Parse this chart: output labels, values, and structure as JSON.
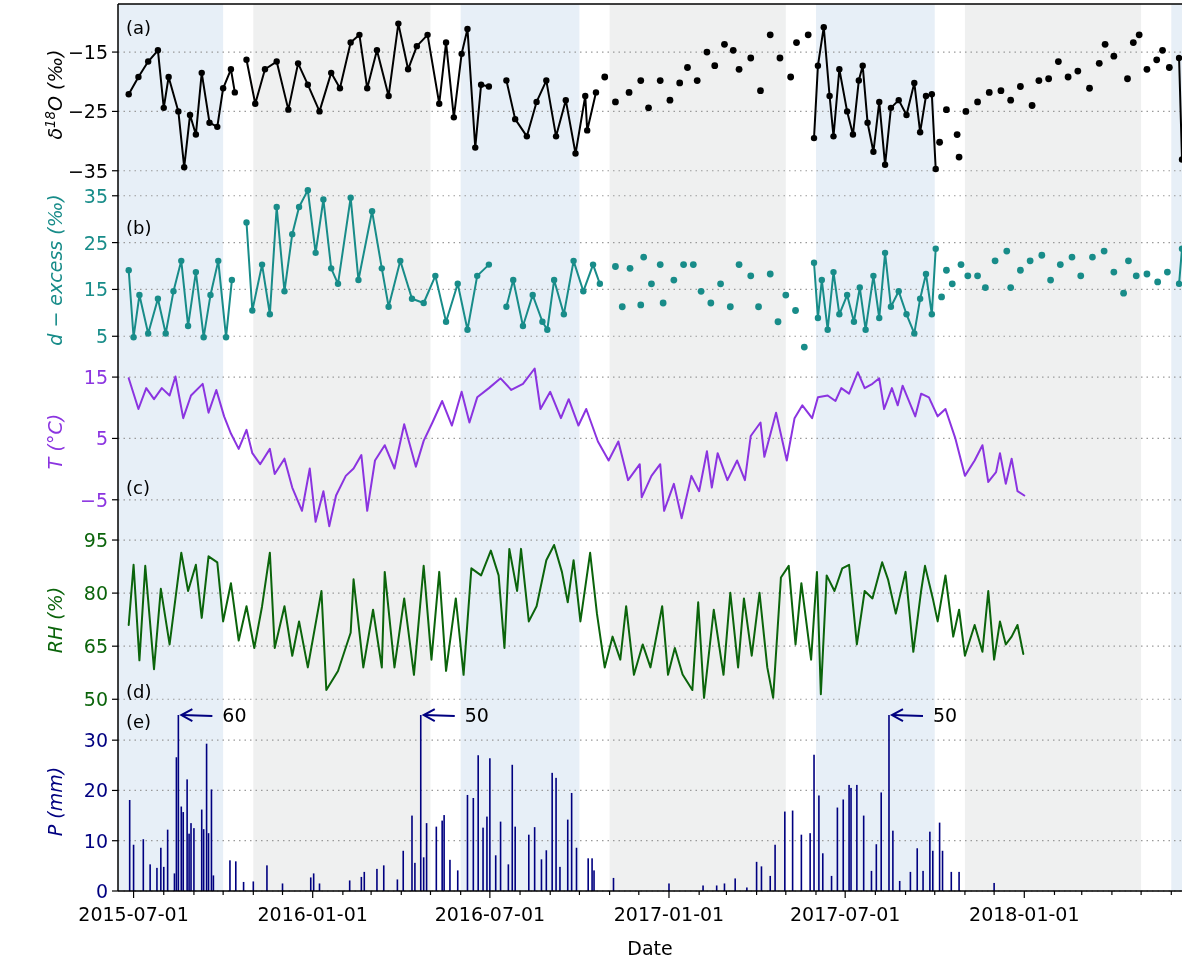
{
  "chart_data": [
    {
      "type": "line",
      "ylabel": "δ$^{18}$O (‰)",
      "xlim": [
        "2015-06-15",
        "2018-06-12"
      ],
      "ylim": [
        -37.4,
        -6.9
      ],
      "yticks": [
        -15,
        -25,
        -35
      ],
      "grid": "y",
      "tick_labels": "y",
      "annotations": [
        "(a)"
      ],
      "bands": [
        {
          "axis": "x",
          "from": "2015-06-15",
          "to": "2015-10-01",
          "color": "#e7eff7"
        },
        {
          "axis": "x",
          "from": "2015-11-01",
          "to": "2016-05-01",
          "color": "#eff0f0"
        },
        {
          "axis": "x",
          "from": "2016-06-01",
          "to": "2016-10-01",
          "color": "#e7eff7"
        },
        {
          "axis": "x",
          "from": "2016-11-01",
          "to": "2017-05-01",
          "color": "#eff0f0"
        },
        {
          "axis": "x",
          "from": "2017-06-01",
          "to": "2017-10-01",
          "color": "#e7eff7"
        },
        {
          "axis": "x",
          "from": "2017-11-01",
          "to": "2018-05-01",
          "color": "#eff0f0"
        },
        {
          "axis": "x",
          "from": "2018-06-01",
          "to": "2018-06-12",
          "color": "#e7eff7"
        }
      ],
      "series": [
        {
          "color": "#000000",
          "marker": "circle",
          "x": [
            "2015-06-26",
            "2015-07-06",
            "2015-07-16",
            "2015-07-26",
            "2015-08-01",
            "2015-08-06",
            "2015-08-16",
            "2015-08-22",
            "2015-08-28",
            "2015-09-03",
            "2015-09-09",
            "2015-09-17",
            "2015-09-25",
            "2015-10-01",
            "2015-10-09",
            "2015-10-13",
            "2015-10-19",
            "2015-10-25",
            "2015-11-03",
            "2015-11-13",
            "2015-11-25",
            "2015-12-07",
            "2015-12-17",
            "2015-12-27",
            "2016-01-08",
            "2016-01-20",
            "2016-01-29",
            "2016-02-09",
            "2016-02-18",
            "2016-02-26",
            "2016-03-07",
            "2016-03-19",
            "2016-03-29",
            "2016-04-08",
            "2016-04-17",
            "2016-04-28",
            "2016-05-10",
            "2016-05-17",
            "2016-05-25",
            "2016-06-02",
            "2016-06-08",
            "2016-06-16",
            "2016-06-22",
            "2016-06-30",
            "2016-07-08",
            "2016-07-18",
            "2016-07-27",
            "2016-08-08",
            "2016-08-18",
            "2016-08-28",
            "2016-09-07",
            "2016-09-17",
            "2016-09-27",
            "2016-10-07",
            "2016-10-09",
            "2016-10-18",
            "2016-10-23",
            "2017-05-30",
            "2017-06-03",
            "2017-06-09",
            "2017-06-15",
            "2017-06-19",
            "2017-06-25",
            "2017-07-03",
            "2017-07-09",
            "2017-07-15",
            "2017-07-19",
            "2017-07-24",
            "2017-07-30",
            "2017-08-05",
            "2017-08-11",
            "2017-08-17",
            "2017-08-25",
            "2017-09-02",
            "2017-09-10",
            "2017-09-16",
            "2017-09-22",
            "2017-09-28",
            "2017-10-02",
            "2017-10-04",
            "2018-06-09",
            "2018-06-12"
          ],
          "values": [
            -22.1,
            -19.2,
            -16.6,
            -14.7,
            -24.4,
            -19.2,
            -25,
            -34.4,
            -25.6,
            -28.9,
            -18.5,
            -26.9,
            -27.6,
            -21.1,
            -17.9,
            -21.8,
            null,
            -16.3,
            -23.7,
            -17.9,
            -16.6,
            -24.7,
            -16.9,
            -20.5,
            -25,
            -18.5,
            -21.1,
            -13.4,
            -12.1,
            -21.1,
            -14.7,
            -22.4,
            -10.2,
            -17.9,
            -14,
            -12.1,
            -23.7,
            -13.4,
            -26,
            -15.3,
            -11.1,
            -31.1,
            -20.5,
            -20.8,
            null,
            -19.8,
            -26.3,
            -29.2,
            -23.4,
            -19.8,
            -29.2,
            -23.1,
            -32.1,
            -22.4,
            -28.2,
            -21.8,
            null,
            -29.5,
            -17.3,
            -10.8,
            -22.4,
            -29.2,
            -17.9,
            -25,
            -28.9,
            -19.8,
            -17.3,
            -26.9,
            -31.8,
            -23.4,
            -34,
            -24.4,
            -23.1,
            -25.6,
            -20.2,
            -28.5,
            -22.4,
            -22.1,
            -34.7,
            null,
            -16,
            -33.1
          ]
        },
        {
          "type": "scatter",
          "color": "#000000",
          "x": [
            "2016-10-27",
            "2016-11-07",
            "2016-11-21",
            "2016-12-03",
            "2016-12-11",
            "2016-12-23",
            "2017-01-02",
            "2017-01-12",
            "2017-01-20",
            "2017-01-30",
            "2017-02-09",
            "2017-02-17",
            "2017-02-27",
            "2017-03-08",
            "2017-03-14",
            "2017-03-26",
            "2017-04-05",
            "2017-04-15",
            "2017-04-25",
            "2017-05-06",
            "2017-05-12",
            "2017-05-24",
            "2017-10-06",
            "2017-10-13",
            "2017-10-24",
            "2017-10-26",
            "2017-11-02",
            "2017-11-14",
            "2017-11-26",
            "2017-12-08",
            "2017-12-18",
            "2017-12-28",
            "2018-01-09",
            "2018-01-16",
            "2018-01-26",
            "2018-02-05",
            "2018-02-15",
            "2018-02-25",
            "2018-03-09",
            "2018-03-19",
            "2018-03-25",
            "2018-04-03",
            "2018-04-17",
            "2018-04-23",
            "2018-04-29",
            "2018-05-07",
            "2018-05-17",
            "2018-05-23",
            "2018-05-30"
          ],
          "values": [
            -19.2,
            -23.4,
            -21.8,
            -19.8,
            -24.4,
            -19.8,
            -23.1,
            -20.2,
            -17.6,
            -19.8,
            -15,
            -17.3,
            -13.7,
            -14.7,
            -17.9,
            -16,
            -21.5,
            -12.1,
            -16,
            -19.2,
            -13.4,
            -12.1,
            -30.2,
            -24.7,
            -28.9,
            -32.7,
            -25,
            -23.4,
            -21.8,
            -21.5,
            -23.1,
            -20.8,
            -24,
            -19.8,
            -19.5,
            -16.6,
            -19.2,
            -18.2,
            -21.1,
            -16.9,
            -13.7,
            -15.7,
            -19.5,
            -13.4,
            -12.1,
            -17.9,
            -16.3,
            -14.7,
            -17.6
          ]
        }
      ]
    },
    {
      "type": "line",
      "ylabel": "d − excess (‰)",
      "xlim": [
        "2015-06-15",
        "2018-06-12"
      ],
      "ylim": [
        1,
        37.3
      ],
      "yticks": [
        35,
        25,
        15,
        5
      ],
      "grid": "y",
      "tick_labels": "y",
      "annotations": [
        "(b)"
      ],
      "bands": [
        {
          "axis": "x",
          "from": "2015-06-15",
          "to": "2015-10-01",
          "color": "#e7eff7"
        },
        {
          "axis": "x",
          "from": "2015-11-01",
          "to": "2016-05-01",
          "color": "#eff0f0"
        },
        {
          "axis": "x",
          "from": "2016-06-01",
          "to": "2016-10-01",
          "color": "#e7eff7"
        },
        {
          "axis": "x",
          "from": "2016-11-01",
          "to": "2017-05-01",
          "color": "#eff0f0"
        },
        {
          "axis": "x",
          "from": "2017-06-01",
          "to": "2017-10-01",
          "color": "#e7eff7"
        },
        {
          "axis": "x",
          "from": "2017-11-01",
          "to": "2018-05-01",
          "color": "#eff0f0"
        },
        {
          "axis": "x",
          "from": "2018-06-01",
          "to": "2018-06-12",
          "color": "#e7eff7"
        }
      ],
      "series": [
        {
          "color": "#188c89",
          "marker": "circle",
          "x": [
            "2015-06-26",
            "2015-07-01",
            "2015-07-07",
            "2015-07-16",
            "2015-07-26",
            "2015-08-03",
            "2015-08-11",
            "2015-08-19",
            "2015-08-26",
            "2015-09-03",
            "2015-09-11",
            "2015-09-18",
            "2015-09-26",
            "2015-10-04",
            "2015-10-10",
            "2015-10-18",
            "2015-10-25",
            "2015-10-31",
            "2015-11-10",
            "2015-11-18",
            "2015-11-25",
            "2015-12-03",
            "2015-12-11",
            "2015-12-18",
            "2015-12-27",
            "2016-01-04",
            "2016-01-12",
            "2016-01-20",
            "2016-01-27",
            "2016-02-09",
            "2016-02-17",
            "2016-03-02",
            "2016-03-12",
            "2016-03-19",
            "2016-03-31",
            "2016-04-12",
            "2016-04-24",
            "2016-05-06",
            "2016-05-17",
            "2016-05-29",
            "2016-06-08",
            "2016-06-18",
            "2016-06-30",
            "2016-07-08",
            "2016-07-18",
            "2016-07-25",
            "2016-08-04",
            "2016-08-14",
            "2016-08-24",
            "2016-08-29",
            "2016-09-05",
            "2016-09-15",
            "2016-09-25",
            "2016-10-05",
            "2016-10-15",
            "2016-10-22",
            "2016-10-25",
            "2017-05-30",
            "2017-06-03",
            "2017-06-07",
            "2017-06-13",
            "2017-06-19",
            "2017-06-25",
            "2017-07-03",
            "2017-07-10",
            "2017-07-16",
            "2017-07-22",
            "2017-07-30",
            "2017-08-05",
            "2017-08-11",
            "2017-08-17",
            "2017-08-25",
            "2017-09-02",
            "2017-09-10",
            "2017-09-16",
            "2017-09-22",
            "2017-09-28",
            "2017-10-02",
            "2017-10-04",
            "2018-06-09",
            "2018-06-12"
          ],
          "values": [
            19.1,
            4.8,
            13.8,
            5.6,
            13,
            5.6,
            14.6,
            21.1,
            7.2,
            18.7,
            4.8,
            13.8,
            21.1,
            4.8,
            17,
            null,
            29.3,
            10.5,
            20.3,
            9.7,
            32.6,
            14.6,
            26.8,
            32.6,
            36.2,
            22.8,
            34.2,
            19.5,
            16.2,
            34.6,
            17,
            31.7,
            19.5,
            11.3,
            21.1,
            13,
            12.1,
            17.9,
            8.1,
            16.2,
            6.4,
            17.9,
            20.3,
            null,
            11.3,
            17,
            7.2,
            13.8,
            8.1,
            6.4,
            17,
            9.7,
            21.1,
            14.6,
            20.3,
            16.2,
            null,
            20.7,
            8.9,
            17,
            6.4,
            18.7,
            9.7,
            13.8,
            8.1,
            15.4,
            6.4,
            17.9,
            8.9,
            22.8,
            11.3,
            14.6,
            9.7,
            5.6,
            13,
            18.3,
            9.7,
            23.7,
            null,
            16.2,
            23.7
          ]
        },
        {
          "type": "scatter",
          "color": "#188c89",
          "x": [
            "2016-11-07",
            "2016-11-14",
            "2016-11-22",
            "2016-12-03",
            "2016-12-06",
            "2016-12-14",
            "2016-12-23",
            "2016-12-26",
            "2017-01-06",
            "2017-01-16",
            "2017-01-26",
            "2017-02-03",
            "2017-02-13",
            "2017-02-23",
            "2017-03-05",
            "2017-03-14",
            "2017-03-26",
            "2017-04-03",
            "2017-04-15",
            "2017-04-23",
            "2017-05-01",
            "2017-05-11",
            "2017-05-20",
            "2017-10-08",
            "2017-10-13",
            "2017-10-19",
            "2017-10-28",
            "2017-11-04",
            "2017-11-14",
            "2017-11-22",
            "2017-12-02",
            "2017-12-14",
            "2017-12-18",
            "2017-12-28",
            "2018-01-07",
            "2018-01-19",
            "2018-01-28",
            "2018-02-07",
            "2018-02-19",
            "2018-02-28",
            "2018-03-12",
            "2018-03-24",
            "2018-04-03",
            "2018-04-13",
            "2018-04-18",
            "2018-04-26",
            "2018-05-07",
            "2018-05-18",
            "2018-05-28"
          ],
          "values": [
            19.9,
            11.3,
            19.5,
            11.7,
            21.9,
            16.2,
            20.3,
            12.1,
            17,
            20.3,
            20.3,
            14.6,
            12.1,
            16.2,
            11.3,
            20.3,
            17.9,
            11.3,
            18.3,
            8.1,
            13.8,
            10.5,
            2.7,
            13.4,
            19.1,
            16.2,
            20.3,
            17.9,
            17.9,
            15.4,
            21.1,
            23.2,
            15.4,
            19.1,
            21.1,
            22.3,
            17,
            20.3,
            21.9,
            17.9,
            21.9,
            23.2,
            18.7,
            14.2,
            21.1,
            17.9,
            18.3,
            16.6,
            18.7
          ]
        }
      ]
    },
    {
      "type": "line",
      "ylabel": "T (°C)",
      "xlim": [
        "2015-06-15",
        "2018-06-12"
      ],
      "ylim": [
        -9.6,
        18.6
      ],
      "yticks": [
        15,
        5,
        -5
      ],
      "grid": "y",
      "tick_labels": "y",
      "annotations": [
        "(c)"
      ],
      "bands": [
        {
          "axis": "x",
          "from": "2015-06-15",
          "to": "2015-10-01",
          "color": "#e7eff7"
        },
        {
          "axis": "x",
          "from": "2015-11-01",
          "to": "2016-05-01",
          "color": "#eff0f0"
        },
        {
          "axis": "x",
          "from": "2016-06-01",
          "to": "2016-10-01",
          "color": "#e7eff7"
        },
        {
          "axis": "x",
          "from": "2016-11-01",
          "to": "2017-05-01",
          "color": "#eff0f0"
        },
        {
          "axis": "x",
          "from": "2017-06-01",
          "to": "2017-10-01",
          "color": "#e7eff7"
        },
        {
          "axis": "x",
          "from": "2017-11-01",
          "to": "2018-05-01",
          "color": "#eff0f0"
        },
        {
          "axis": "x",
          "from": "2018-06-01",
          "to": "2018-06-12",
          "color": "#e7eff7"
        }
      ],
      "series": [
        {
          "color": "#8b34e0",
          "x": [
            "2015-06-26",
            "2015-07-06",
            "2015-07-14",
            "2015-07-22",
            "2015-07-30",
            "2015-08-07",
            "2015-08-13",
            "2015-08-21",
            "2015-08-29",
            "2015-09-10",
            "2015-09-16",
            "2015-09-24",
            "2015-10-02",
            "2015-10-09",
            "2015-10-17",
            "2015-10-25",
            "2015-10-31",
            "2015-11-08",
            "2015-11-18",
            "2015-11-23",
            "2015-12-03",
            "2015-12-11",
            "2015-12-21",
            "2015-12-29",
            "2016-01-04",
            "2016-01-12",
            "2016-01-18",
            "2016-01-25",
            "2016-02-04",
            "2016-02-12",
            "2016-02-20",
            "2016-02-26",
            "2016-03-05",
            "2016-03-15",
            "2016-03-25",
            "2016-04-04",
            "2016-04-16",
            "2016-04-24",
            "2016-05-03",
            "2016-05-13",
            "2016-05-23",
            "2016-06-02",
            "2016-06-10",
            "2016-06-18",
            "2016-06-30",
            "2016-07-12",
            "2016-07-23",
            "2016-08-04",
            "2016-08-16",
            "2016-08-22",
            "2016-09-01",
            "2016-09-12",
            "2016-09-20",
            "2016-09-30",
            "2016-10-08",
            "2016-10-20",
            "2016-10-31",
            "2016-11-10",
            "2016-11-20",
            "2016-12-02",
            "2016-12-04",
            "2016-12-14",
            "2016-12-23",
            "2016-12-27",
            "2017-01-06",
            "2017-01-14",
            "2017-01-24",
            "2017-02-01",
            "2017-02-09",
            "2017-02-14",
            "2017-02-20",
            "2017-03-02",
            "2017-03-12",
            "2017-03-20",
            "2017-03-26",
            "2017-04-05",
            "2017-04-09",
            "2017-04-21",
            "2017-05-02",
            "2017-05-10",
            "2017-05-18",
            "2017-05-28",
            "2017-06-03",
            "2017-06-13",
            "2017-06-21",
            "2017-06-27",
            "2017-07-05",
            "2017-07-14",
            "2017-07-21",
            "2017-07-29",
            "2017-08-05",
            "2017-08-10",
            "2017-08-18",
            "2017-08-24",
            "2017-08-29",
            "2017-09-11",
            "2017-09-17",
            "2017-09-25",
            "2017-10-04",
            "2017-10-12",
            "2017-10-22",
            "2017-11-01",
            "2017-11-11",
            "2017-11-19",
            "2017-11-25",
            "2017-12-03",
            "2017-12-07",
            "2017-12-13",
            "2017-12-19",
            "2017-12-25",
            "2018-01-01"
          ],
          "values": [
            14.8,
            9.8,
            13.2,
            11.4,
            13.2,
            12,
            15.1,
            8.3,
            12,
            13.9,
            9.2,
            12.9,
            8.6,
            5.8,
            3.3,
            6.4,
            2.6,
            0.8,
            3.3,
            -0.8,
            1.7,
            -3,
            -6.8,
            0.1,
            -8.6,
            -3.6,
            -9.3,
            -4.3,
            -1.1,
            0.1,
            2.3,
            -6.8,
            1.4,
            3.9,
            0.1,
            7.3,
            0.4,
            4.6,
            7.6,
            11.1,
            7.1,
            12.6,
            7.6,
            11.7,
            13.2,
            14.8,
            12.9,
            13.9,
            16.4,
            9.8,
            12.6,
            8.3,
            11.4,
            7.1,
            9.8,
            4.5,
            1.4,
            4.5,
            -1.8,
            0.8,
            -4.6,
            -1.1,
            0.8,
            -6.8,
            -2.4,
            -8,
            -1.1,
            -3.6,
            2.9,
            -3,
            2.6,
            -1.8,
            1.4,
            -1.8,
            5.4,
            7.6,
            2,
            9.2,
            1.4,
            8.3,
            10.4,
            8.3,
            11.7,
            12,
            11.1,
            13.2,
            12.3,
            15.8,
            13.2,
            13.9,
            14.8,
            9.8,
            13.2,
            10.4,
            13.6,
            8.6,
            12.3,
            11.7,
            8.6,
            9.8,
            5.1,
            -1.1,
            1.4,
            3.9,
            -2.1,
            -0.5,
            2.6,
            -2.4,
            1.7,
            -3.6,
            -4.3
          ]
        }
      ]
    },
    {
      "type": "line",
      "ylabel": "RH (%)",
      "xlim": [
        "2015-06-15",
        "2018-06-12"
      ],
      "ylim": [
        46.4,
        98.4
      ],
      "yticks": [
        95,
        80,
        65,
        50
      ],
      "grid": "y",
      "tick_labels": "y",
      "annotations": [
        "(d)"
      ],
      "bands": [
        {
          "axis": "x",
          "from": "2015-06-15",
          "to": "2015-10-01",
          "color": "#e7eff7"
        },
        {
          "axis": "x",
          "from": "2015-11-01",
          "to": "2016-05-01",
          "color": "#eff0f0"
        },
        {
          "axis": "x",
          "from": "2016-06-01",
          "to": "2016-10-01",
          "color": "#e7eff7"
        },
        {
          "axis": "x",
          "from": "2016-11-01",
          "to": "2017-05-01",
          "color": "#eff0f0"
        },
        {
          "axis": "x",
          "from": "2017-06-01",
          "to": "2017-10-01",
          "color": "#e7eff7"
        },
        {
          "axis": "x",
          "from": "2017-11-01",
          "to": "2018-05-01",
          "color": "#eff0f0"
        },
        {
          "axis": "x",
          "from": "2018-06-01",
          "to": "2018-06-12",
          "color": "#e7eff7"
        }
      ],
      "series": [
        {
          "color": "#0b640b",
          "x": [
            "2015-06-26",
            "2015-07-01",
            "2015-07-07",
            "2015-07-13",
            "2015-07-22",
            "2015-07-29",
            "2015-08-07",
            "2015-08-19",
            "2015-08-26",
            "2015-09-03",
            "2015-09-09",
            "2015-09-16",
            "2015-09-25",
            "2015-10-01",
            "2015-10-09",
            "2015-10-17",
            "2015-10-25",
            "2015-11-02",
            "2015-11-10",
            "2015-11-18",
            "2015-11-23",
            "2015-12-03",
            "2015-12-11",
            "2015-12-18",
            "2015-12-27",
            "2016-01-10",
            "2016-01-15",
            "2016-01-27",
            "2016-02-09",
            "2016-02-12",
            "2016-02-22",
            "2016-03-03",
            "2016-03-12",
            "2016-03-15",
            "2016-03-25",
            "2016-04-04",
            "2016-04-14",
            "2016-04-24",
            "2016-05-02",
            "2016-05-10",
            "2016-05-17",
            "2016-05-27",
            "2016-06-04",
            "2016-06-12",
            "2016-06-22",
            "2016-07-02",
            "2016-07-10",
            "2016-07-16",
            "2016-07-21",
            "2016-07-29",
            "2016-08-02",
            "2016-08-10",
            "2016-08-18",
            "2016-08-28",
            "2016-09-05",
            "2016-09-13",
            "2016-09-19",
            "2016-09-25",
            "2016-10-02",
            "2016-10-12",
            "2016-10-19",
            "2016-10-27",
            "2016-11-04",
            "2016-11-12",
            "2016-11-18",
            "2016-11-26",
            "2016-12-05",
            "2016-12-13",
            "2016-12-25",
            "2016-12-31",
            "2017-01-07",
            "2017-01-15",
            "2017-01-25",
            "2017-01-31",
            "2017-02-06",
            "2017-02-16",
            "2017-02-26",
            "2017-03-05",
            "2017-03-13",
            "2017-03-19",
            "2017-03-27",
            "2017-04-04",
            "2017-04-12",
            "2017-04-18",
            "2017-04-26",
            "2017-05-04",
            "2017-05-11",
            "2017-05-17",
            "2017-05-27",
            "2017-06-02",
            "2017-06-06",
            "2017-06-12",
            "2017-06-20",
            "2017-06-28",
            "2017-07-05",
            "2017-07-13",
            "2017-07-21",
            "2017-07-29",
            "2017-08-08",
            "2017-08-14",
            "2017-08-22",
            "2017-09-01",
            "2017-09-09",
            "2017-09-17",
            "2017-09-21",
            "2017-09-29",
            "2017-10-04",
            "2017-10-12",
            "2017-10-20",
            "2017-10-26",
            "2017-11-01",
            "2017-11-11",
            "2017-11-19",
            "2017-11-25",
            "2017-12-01",
            "2017-12-07",
            "2017-12-13",
            "2017-12-19",
            "2017-12-25",
            "2017-12-31"
          ],
          "values": [
            71,
            88,
            61,
            87.7,
            58.5,
            81.2,
            65.5,
            91.4,
            80.6,
            88,
            73,
            90.4,
            88.7,
            72,
            82.8,
            66.6,
            76.3,
            64.5,
            76.3,
            91.4,
            64.5,
            76.3,
            62.3,
            72,
            59,
            80.6,
            52.6,
            58,
            68.8,
            83.9,
            59,
            75.3,
            59,
            86,
            59,
            78.5,
            56.9,
            87.7,
            61.2,
            86,
            58,
            78.5,
            56.9,
            87,
            85,
            92,
            85,
            64.5,
            92.5,
            80.6,
            92.5,
            72,
            76.3,
            89.3,
            93.6,
            86,
            77.4,
            89.3,
            72,
            91.4,
            74.2,
            59,
            67.7,
            61.2,
            76.3,
            56.9,
            65.5,
            59,
            76.3,
            56.9,
            64.5,
            57,
            52.6,
            77.4,
            50.4,
            75.3,
            56.9,
            80.1,
            59,
            78.5,
            62.3,
            80.1,
            59,
            50.4,
            84.4,
            87.7,
            65.5,
            82.8,
            61.2,
            86,
            51.4,
            85,
            80.6,
            87,
            88,
            65.5,
            80.6,
            78.5,
            88.7,
            83.9,
            74.2,
            86,
            63.4,
            80.6,
            87.7,
            78.5,
            72,
            85,
            67.7,
            75.3,
            62.3,
            71,
            63.4,
            80.6,
            61.2,
            72,
            65.5,
            67.7,
            71,
            62.8
          ]
        }
      ]
    },
    {
      "type": "bar",
      "ylabel": "P (mm)",
      "xlabel": "Date",
      "xlim": [
        "2015-06-15",
        "2018-06-12"
      ],
      "ylim": [
        0,
        35.6
      ],
      "yticks": [
        0,
        10,
        20,
        30
      ],
      "grid": "y",
      "xticks": [
        {
          "value": "2015-07-01",
          "label": "2015-07-01"
        },
        {
          "value": "2015-08-01",
          "label": null
        },
        {
          "value": "2015-09-01",
          "label": null
        },
        {
          "value": "2015-10-01",
          "label": null
        },
        {
          "value": "2015-11-01",
          "label": null
        },
        {
          "value": "2015-12-01",
          "label": null
        },
        {
          "value": "2016-01-01",
          "label": "2016-01-01"
        },
        {
          "value": "2016-02-01",
          "label": null
        },
        {
          "value": "2016-03-01",
          "label": null
        },
        {
          "value": "2016-04-01",
          "label": null
        },
        {
          "value": "2016-05-01",
          "label": null
        },
        {
          "value": "2016-06-01",
          "label": null
        },
        {
          "value": "2016-07-01",
          "label": "2016-07-01"
        },
        {
          "value": "2016-08-01",
          "label": null
        },
        {
          "value": "2016-09-01",
          "label": null
        },
        {
          "value": "2016-10-01",
          "label": null
        },
        {
          "value": "2016-11-01",
          "label": null
        },
        {
          "value": "2016-12-01",
          "label": null
        },
        {
          "value": "2017-01-01",
          "label": "2017-01-01"
        },
        {
          "value": "2017-02-01",
          "label": null
        },
        {
          "value": "2017-03-01",
          "label": null
        },
        {
          "value": "2017-04-01",
          "label": null
        },
        {
          "value": "2017-05-01",
          "label": null
        },
        {
          "value": "2017-06-01",
          "label": null
        },
        {
          "value": "2017-07-01",
          "label": "2017-07-01"
        },
        {
          "value": "2017-08-01",
          "label": null
        },
        {
          "value": "2017-09-01",
          "label": null
        },
        {
          "value": "2017-10-01",
          "label": null
        },
        {
          "value": "2017-11-01",
          "label": null
        },
        {
          "value": "2017-12-01",
          "label": null
        },
        {
          "value": "2018-01-01",
          "label": "2018-01-01"
        },
        {
          "value": "2018-02-01",
          "label": null
        },
        {
          "value": "2018-03-01",
          "label": null
        },
        {
          "value": "2018-04-01",
          "label": null
        },
        {
          "value": "2018-05-01",
          "label": null
        },
        {
          "value": "2018-06-01",
          "label": null
        }
      ],
      "annotations": [
        "(e)",
        {
          "text": "60",
          "x": "2015-08-16",
          "y": 35
        },
        {
          "text": "50",
          "x": "2016-04-21",
          "y": 35
        },
        {
          "text": "50",
          "x": "2017-08-15",
          "y": 35
        }
      ],
      "bands": [
        {
          "axis": "x",
          "from": "2015-06-15",
          "to": "2015-10-01",
          "color": "#e7eff7"
        },
        {
          "axis": "x",
          "from": "2015-11-01",
          "to": "2016-05-01",
          "color": "#eff0f0"
        },
        {
          "axis": "x",
          "from": "2016-06-01",
          "to": "2016-10-01",
          "color": "#e7eff7"
        },
        {
          "axis": "x",
          "from": "2016-11-01",
          "to": "2017-05-01",
          "color": "#eff0f0"
        },
        {
          "axis": "x",
          "from": "2017-06-01",
          "to": "2017-10-01",
          "color": "#e7eff7"
        },
        {
          "axis": "x",
          "from": "2017-11-01",
          "to": "2018-05-01",
          "color": "#eff0f0"
        },
        {
          "axis": "x",
          "from": "2018-06-01",
          "to": "2018-06-12",
          "color": "#e7eff7"
        }
      ],
      "series": [
        {
          "color": "#000080",
          "x": [
            "2015-06-27",
            "2015-07-01",
            "2015-07-11",
            "2015-07-18",
            "2015-07-25",
            "2015-07-29",
            "2015-08-01",
            "2015-08-05",
            "2015-08-12",
            "2015-08-14",
            "2015-08-16",
            "2015-08-19",
            "2015-08-21",
            "2015-08-25",
            "2015-08-27",
            "2015-08-29",
            "2015-09-01",
            "2015-09-09",
            "2015-09-11",
            "2015-09-14",
            "2015-09-16",
            "2015-09-19",
            "2015-09-21",
            "2015-10-08",
            "2015-10-14",
            "2015-10-22",
            "2015-11-01",
            "2015-11-15",
            "2015-12-01",
            "2015-12-30",
            "2016-01-02",
            "2016-01-08",
            "2016-02-08",
            "2016-02-20",
            "2016-02-23",
            "2016-03-07",
            "2016-03-14",
            "2016-03-28",
            "2016-04-03",
            "2016-04-12",
            "2016-04-15",
            "2016-04-21",
            "2016-04-24",
            "2016-04-27",
            "2016-05-07",
            "2016-05-13",
            "2016-05-15",
            "2016-05-21",
            "2016-05-29",
            "2016-06-08",
            "2016-06-14",
            "2016-06-19",
            "2016-06-24",
            "2016-06-28",
            "2016-07-01",
            "2016-07-07",
            "2016-07-12",
            "2016-07-20",
            "2016-07-24",
            "2016-07-27",
            "2016-08-10",
            "2016-08-16",
            "2016-08-23",
            "2016-08-28",
            "2016-09-03",
            "2016-09-07",
            "2016-09-11",
            "2016-09-19",
            "2016-09-23",
            "2016-09-28",
            "2016-10-10",
            "2016-10-14",
            "2016-10-16",
            "2016-11-05",
            "2017-01-01",
            "2017-02-05",
            "2017-02-19",
            "2017-02-27",
            "2017-03-10",
            "2017-03-22",
            "2017-04-01",
            "2017-04-06",
            "2017-04-15",
            "2017-04-20",
            "2017-04-30",
            "2017-05-08",
            "2017-05-17",
            "2017-05-26",
            "2017-05-30",
            "2017-06-04",
            "2017-06-08",
            "2017-06-17",
            "2017-06-23",
            "2017-06-29",
            "2017-07-05",
            "2017-07-07",
            "2017-07-13",
            "2017-07-20",
            "2017-07-28",
            "2017-08-02",
            "2017-08-07",
            "2017-08-15",
            "2017-08-19",
            "2017-08-26",
            "2017-09-06",
            "2017-09-13",
            "2017-09-19",
            "2017-09-26",
            "2017-09-29",
            "2017-10-06",
            "2017-10-09",
            "2017-10-18",
            "2017-10-26",
            "2017-12-01"
          ],
          "values": [
            18.1,
            9.2,
            10.3,
            5.3,
            4.6,
            8.6,
            4.8,
            12.2,
            3.5,
            26.6,
            35,
            16.8,
            15.7,
            22.2,
            11.4,
            13.5,
            12.5,
            16.2,
            12.3,
            29.3,
            11.5,
            20.2,
            3.1,
            6.1,
            5.9,
            1.8,
            1.9,
            5.1,
            1.5,
            2.7,
            3.5,
            1.5,
            2.1,
            2.8,
            3.8,
            4.4,
            5.1,
            2.3,
            8,
            15,
            5.6,
            35,
            6.7,
            13.5,
            12.8,
            14,
            15.1,
            6.2,
            4.1,
            19.1,
            18.5,
            27,
            12.6,
            14.8,
            26.4,
            7.1,
            13.8,
            5.3,
            25.1,
            12.8,
            11.2,
            12.7,
            6.3,
            8.1,
            23.5,
            22.5,
            4.8,
            14.2,
            19.5,
            8.6,
            6.5,
            6.5,
            4.1,
            2.6,
            1.5,
            1.1,
            1.1,
            1.5,
            2.5,
            0.7,
            5.8,
            4.9,
            3,
            9.2,
            15.8,
            16,
            11.2,
            11.5,
            27.1,
            19,
            7.5,
            3,
            16.6,
            18.2,
            21.1,
            20.5,
            21.1,
            15,
            4,
            9.3,
            19.6,
            35,
            12,
            2,
            3.8,
            8.5,
            4,
            11.8,
            8,
            13.6,
            8,
            3.8,
            3.8,
            1.6
          ]
        }
      ]
    }
  ]
}
